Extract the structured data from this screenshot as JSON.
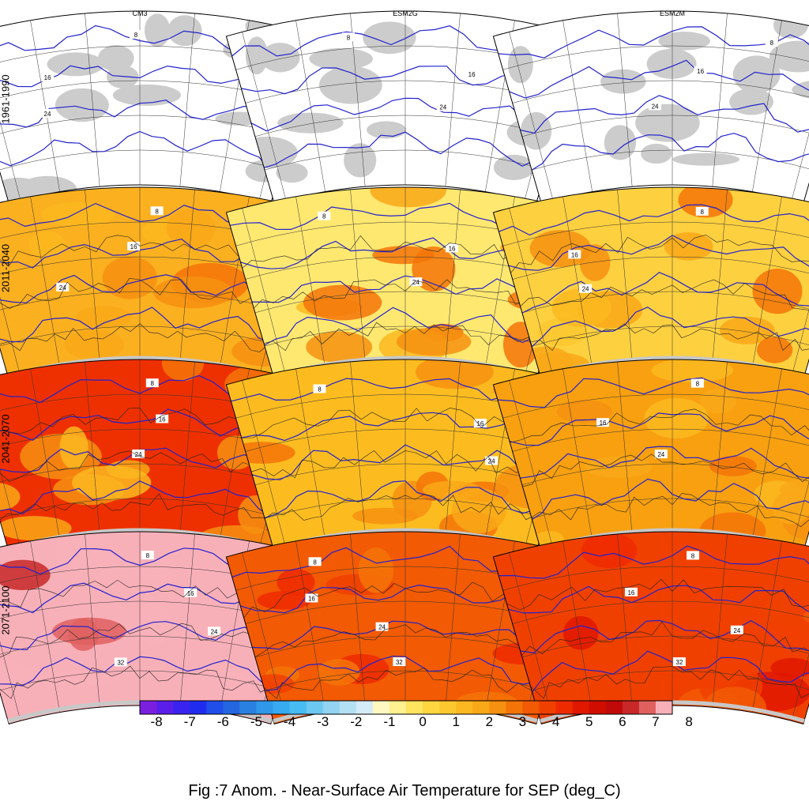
{
  "figure": {
    "caption": "Fig :7  Anom.  - Near-Surface Air Temperature for SEP (deg_C)",
    "columns": [
      "CM3",
      "ESM2G",
      "ESM2M"
    ],
    "rows": [
      "1961-1990",
      "2011-2040",
      "2041-2070",
      "2071-2100"
    ]
  },
  "colorbar": {
    "tick_labels": [
      "-8",
      "-7",
      "-6",
      "-5",
      "-4",
      "-3",
      "-2",
      "-1",
      "0",
      "1",
      "2",
      "3",
      "4",
      "5",
      "6",
      "7",
      "8"
    ],
    "colors": [
      "#7a1fe0",
      "#5a1ee8",
      "#3a22f0",
      "#1f2cf0",
      "#1f4ee8",
      "#2466e0",
      "#2a80e0",
      "#2f98e8",
      "#38aaf0",
      "#46bcf2",
      "#6cc8f0",
      "#92d4f2",
      "#b4e0f4",
      "#d4ecf8",
      "#fff8c0",
      "#fff090",
      "#ffe460",
      "#fdd640",
      "#fcc830",
      "#fbb820",
      "#f9a818",
      "#f69010",
      "#f47408",
      "#f25a04",
      "#f04000",
      "#ee2a00",
      "#e01800",
      "#d00e00",
      "#c00a0a",
      "#c82828",
      "#e06060",
      "#f8b0b8"
    ]
  },
  "panel_styles": {
    "baseline": {
      "land": "#cccccc",
      "fill": "none"
    },
    "CM3|2011-2040": {
      "base": "#fbb020"
    },
    "ESM2G|2011-2040": {
      "base": "#ffe870"
    },
    "ESM2M|2011-2040": {
      "base": "#fdd040"
    },
    "CM3|2041-2070": {
      "base": "#ee3000"
    },
    "ESM2G|2041-2070": {
      "base": "#fcbc20"
    },
    "ESM2M|2041-2070": {
      "base": "#f8a010"
    },
    "CM3|2071-2100": {
      "base": "#f8b0b8"
    },
    "ESM2G|2071-2100": {
      "base": "#f25a04"
    },
    "ESM2M|2071-2100": {
      "base": "#f04000"
    }
  },
  "contour_labels": [
    "8",
    "16",
    "24",
    "32"
  ],
  "chart_data": {
    "type": "heatmap",
    "title": "Fig :7  Anom.  - Near-Surface Air Temperature for SEP (deg_C)",
    "variable": "Near-Surface Air Temperature anomaly, September",
    "units": "deg_C",
    "colorbar_range": [
      -8,
      8
    ],
    "models": [
      "CM3",
      "ESM2G",
      "ESM2M"
    ],
    "periods": [
      "1961-1990",
      "2011-2040",
      "2041-2070",
      "2071-2100"
    ],
    "contour_levels_shown": [
      8,
      16,
      24,
      32
    ]
  }
}
